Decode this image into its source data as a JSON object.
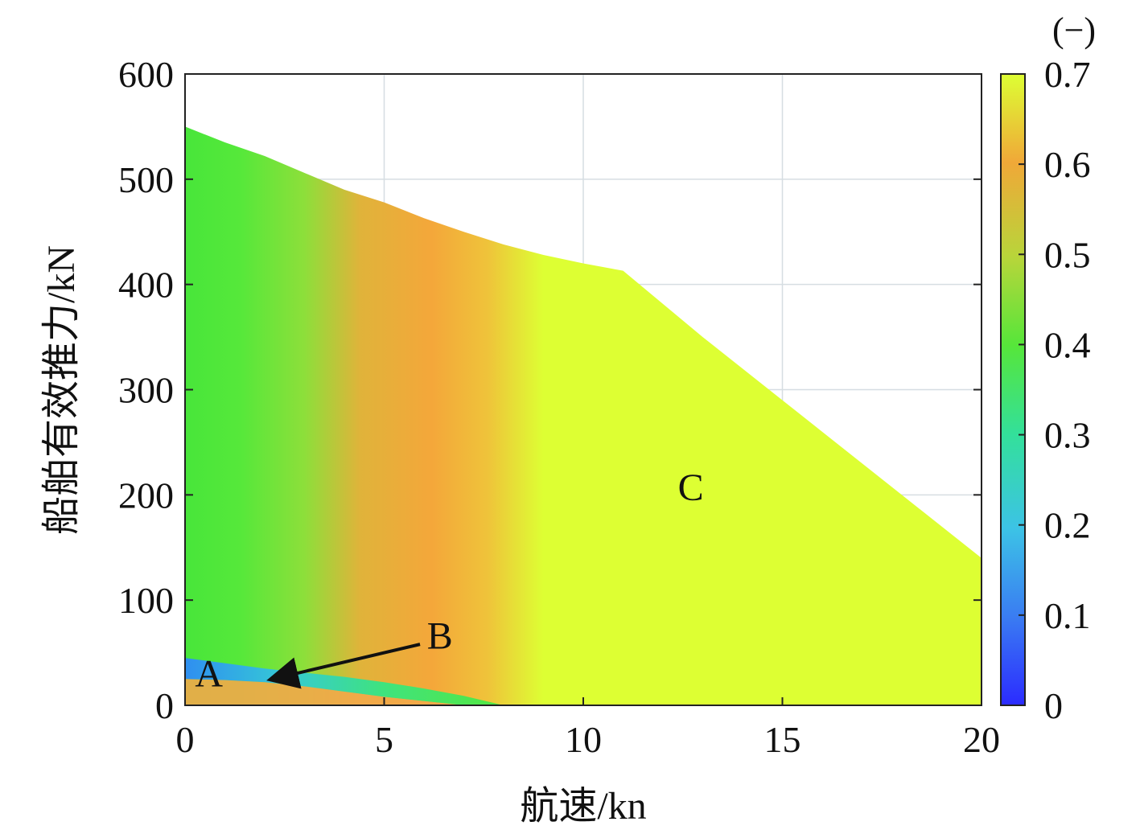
{
  "chart_data": {
    "type": "heatmap",
    "xlabel": "航速/kn",
    "ylabel": "船舶有效推力/kN",
    "xlim": [
      0,
      20
    ],
    "ylim": [
      0,
      600
    ],
    "x_ticks": [
      "0",
      "5",
      "10",
      "15",
      "20"
    ],
    "y_ticks": [
      "0",
      "100",
      "200",
      "300",
      "400",
      "500",
      "600"
    ],
    "grid": true,
    "colorbar": {
      "unit_label": "(−)",
      "range": [
        0,
        0.7
      ],
      "ticks": [
        "0",
        "0.1",
        "0.2",
        "0.3",
        "0.4",
        "0.5",
        "0.6",
        "0.7"
      ],
      "colormap": [
        "#2b2bff",
        "#3a7cf2",
        "#3cc3e6",
        "#33e09a",
        "#56e63a",
        "#b8d53a",
        "#f0a838",
        "#ddff33"
      ]
    },
    "upper_boundary": {
      "speed": [
        0,
        1,
        2,
        3,
        4,
        5,
        6,
        7,
        8,
        9,
        10,
        11,
        13,
        15,
        17,
        20
      ],
      "thrust": [
        550,
        535,
        522,
        506,
        490,
        478,
        463,
        450,
        438,
        428,
        420,
        413,
        350,
        290,
        230,
        140
      ]
    },
    "low_efficiency_band": {
      "speed": [
        0,
        1,
        2,
        3,
        4,
        5,
        6,
        7,
        8
      ],
      "thrust_top": [
        45,
        40,
        35,
        31,
        27,
        22,
        16,
        9,
        0
      ],
      "thrust_bottom": [
        25,
        24,
        22,
        18,
        13,
        8,
        4,
        0,
        0
      ]
    },
    "annotations": [
      {
        "text": "A",
        "speed": 0.6,
        "thrust": 18
      },
      {
        "text": "B",
        "speed": 6.4,
        "thrust": 54
      },
      {
        "text": "C",
        "speed": 12.7,
        "thrust": 195
      }
    ],
    "arrow": {
      "from_speed": 5.9,
      "from_thrust": 58,
      "to_speed": 2.2,
      "to_thrust": 25
    }
  }
}
